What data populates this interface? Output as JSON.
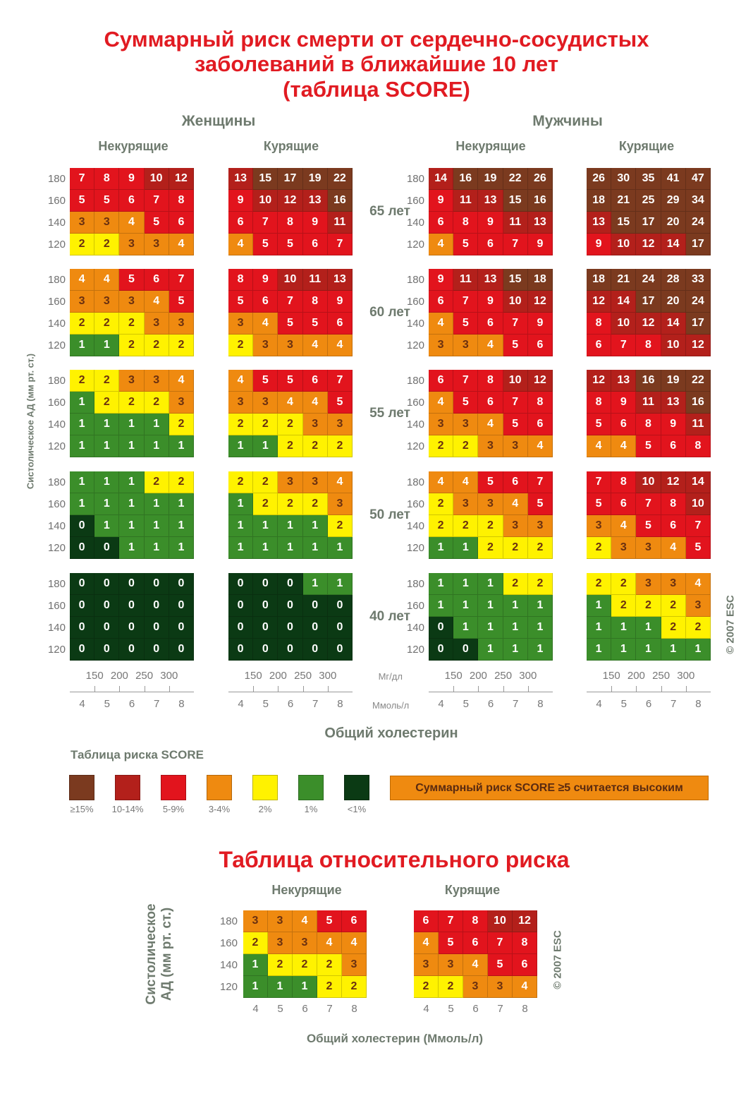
{
  "title": {
    "line1": "Суммарный риск смерти от сердечно-сосудистых",
    "line2": "заболеваний в ближайшие 10 лет",
    "line3": "(таблица SCORE)"
  },
  "colors": {
    "ge15": "#7b3a1f",
    "10_14": "#b3201b",
    "5_9": "#e2141d",
    "3_4": "#ef8a10",
    "2": "#fff200",
    "1": "#3b8e2a",
    "lt1": "#0b3a14",
    "title_red": "#e11b22",
    "label_grey": "#6e7a6e"
  },
  "chart_data": [
    {
      "type": "heatmap",
      "title": "Суммарный риск смерти от сердечно-сосудистых заболеваний в ближайшие 10 лет (таблица SCORE)",
      "ylabel": "Систолическое АД (мм рт. ст.)",
      "xlabel": "Общий холестерин",
      "x_ticks_mmol": [
        "4",
        "5",
        "6",
        "7",
        "8"
      ],
      "x_ticks_mg": [
        "150",
        "200",
        "250",
        "300"
      ],
      "x_unit_mg": "Мг/дл",
      "x_unit_mmol": "Ммоль/л",
      "y_ticks": [
        "180",
        "160",
        "140",
        "120"
      ],
      "ages": [
        "65 лет",
        "60 лет",
        "55 лет",
        "50 лет",
        "40 лет"
      ],
      "groups": [
        {
          "sex": "Женщины",
          "smoking": "Некурящие",
          "values": [
            [
              [
                7,
                8,
                9,
                10,
                12
              ],
              [
                5,
                5,
                6,
                7,
                8
              ],
              [
                3,
                3,
                4,
                5,
                6
              ],
              [
                2,
                2,
                3,
                3,
                4
              ]
            ],
            [
              [
                4,
                4,
                5,
                6,
                7
              ],
              [
                3,
                3,
                3,
                4,
                5
              ],
              [
                2,
                2,
                2,
                3,
                3
              ],
              [
                1,
                1,
                2,
                2,
                2
              ]
            ],
            [
              [
                2,
                2,
                3,
                3,
                4
              ],
              [
                1,
                2,
                2,
                2,
                3
              ],
              [
                1,
                1,
                1,
                1,
                2
              ],
              [
                1,
                1,
                1,
                1,
                1
              ]
            ],
            [
              [
                1,
                1,
                1,
                2,
                2
              ],
              [
                1,
                1,
                1,
                1,
                1
              ],
              [
                0,
                1,
                1,
                1,
                1
              ],
              [
                0,
                0,
                1,
                1,
                1
              ]
            ],
            [
              [
                0,
                0,
                0,
                0,
                0
              ],
              [
                0,
                0,
                0,
                0,
                0
              ],
              [
                0,
                0,
                0,
                0,
                0
              ],
              [
                0,
                0,
                0,
                0,
                0
              ]
            ]
          ]
        },
        {
          "sex": "Женщины",
          "smoking": "Курящие",
          "values": [
            [
              [
                13,
                15,
                17,
                19,
                22
              ],
              [
                9,
                10,
                12,
                13,
                16
              ],
              [
                6,
                7,
                8,
                9,
                11
              ],
              [
                4,
                5,
                5,
                6,
                7
              ]
            ],
            [
              [
                8,
                9,
                10,
                11,
                13
              ],
              [
                5,
                6,
                7,
                8,
                9
              ],
              [
                3,
                4,
                5,
                5,
                6
              ],
              [
                2,
                3,
                3,
                4,
                4
              ]
            ],
            [
              [
                4,
                5,
                5,
                6,
                7
              ],
              [
                3,
                3,
                4,
                4,
                5
              ],
              [
                2,
                2,
                2,
                3,
                3
              ],
              [
                1,
                1,
                2,
                2,
                2
              ]
            ],
            [
              [
                2,
                2,
                3,
                3,
                4
              ],
              [
                1,
                2,
                2,
                2,
                3
              ],
              [
                1,
                1,
                1,
                1,
                2
              ],
              [
                1,
                1,
                1,
                1,
                1
              ]
            ],
            [
              [
                0,
                0,
                0,
                1,
                1
              ],
              [
                0,
                0,
                0,
                0,
                0
              ],
              [
                0,
                0,
                0,
                0,
                0
              ],
              [
                0,
                0,
                0,
                0,
                0
              ]
            ]
          ]
        },
        {
          "sex": "Мужчины",
          "smoking": "Некурящие",
          "values": [
            [
              [
                14,
                16,
                19,
                22,
                26
              ],
              [
                9,
                11,
                13,
                15,
                16
              ],
              [
                6,
                8,
                9,
                11,
                13
              ],
              [
                4,
                5,
                6,
                7,
                9
              ]
            ],
            [
              [
                9,
                11,
                13,
                15,
                18
              ],
              [
                6,
                7,
                9,
                10,
                12
              ],
              [
                4,
                5,
                6,
                7,
                9
              ],
              [
                3,
                3,
                4,
                5,
                6
              ]
            ],
            [
              [
                6,
                7,
                8,
                10,
                12
              ],
              [
                4,
                5,
                6,
                7,
                8
              ],
              [
                3,
                3,
                4,
                5,
                6
              ],
              [
                2,
                2,
                3,
                3,
                4
              ]
            ],
            [
              [
                4,
                4,
                5,
                6,
                7
              ],
              [
                2,
                3,
                3,
                4,
                5
              ],
              [
                2,
                2,
                2,
                3,
                3
              ],
              [
                1,
                1,
                2,
                2,
                2
              ]
            ],
            [
              [
                1,
                1,
                1,
                2,
                2
              ],
              [
                1,
                1,
                1,
                1,
                1
              ],
              [
                0,
                1,
                1,
                1,
                1
              ],
              [
                0,
                0,
                1,
                1,
                1
              ]
            ]
          ]
        },
        {
          "sex": "Мужчины",
          "smoking": "Курящие",
          "values": [
            [
              [
                26,
                30,
                35,
                41,
                47
              ],
              [
                18,
                21,
                25,
                29,
                34
              ],
              [
                13,
                15,
                17,
                20,
                24
              ],
              [
                9,
                10,
                12,
                14,
                17
              ]
            ],
            [
              [
                18,
                21,
                24,
                28,
                33
              ],
              [
                12,
                14,
                17,
                20,
                24
              ],
              [
                8,
                10,
                12,
                14,
                17
              ],
              [
                6,
                7,
                8,
                10,
                12
              ]
            ],
            [
              [
                12,
                13,
                16,
                19,
                22
              ],
              [
                8,
                9,
                11,
                13,
                16
              ],
              [
                5,
                6,
                8,
                9,
                11
              ],
              [
                4,
                4,
                5,
                6,
                8
              ]
            ],
            [
              [
                7,
                8,
                10,
                12,
                14
              ],
              [
                5,
                6,
                7,
                8,
                10
              ],
              [
                3,
                4,
                5,
                6,
                7
              ],
              [
                2,
                3,
                3,
                4,
                5
              ]
            ],
            [
              [
                2,
                2,
                3,
                3,
                4
              ],
              [
                1,
                2,
                2,
                2,
                3
              ],
              [
                1,
                1,
                1,
                2,
                2
              ],
              [
                1,
                1,
                1,
                1,
                1
              ]
            ]
          ]
        }
      ],
      "legend": {
        "title": "Таблица риска SCORE",
        "items": [
          {
            "label": "≥15%",
            "color": "#7b3a1f"
          },
          {
            "label": "10-14%",
            "color": "#b3201b"
          },
          {
            "label": "5-9%",
            "color": "#e2141d"
          },
          {
            "label": "3-4%",
            "color": "#ef8a10"
          },
          {
            "label": "2%",
            "color": "#fff200"
          },
          {
            "label": "1%",
            "color": "#3b8e2a"
          },
          {
            "label": "<1%",
            "color": "#0b3a14"
          }
        ],
        "note": "Суммарный риск SCORE ≥5 считается высоким"
      },
      "copyright": "© 2007 ESC"
    },
    {
      "type": "heatmap",
      "title": "Таблица относительного риска",
      "ylabel": "Систолическое АД (мм рт. ст.)",
      "xlabel": "Общий холестерин (Ммоль/л)",
      "x_ticks": [
        "4",
        "5",
        "6",
        "7",
        "8"
      ],
      "y_ticks": [
        "180",
        "160",
        "140",
        "120"
      ],
      "groups": [
        {
          "smoking": "Некурящие",
          "values": [
            [
              3,
              3,
              4,
              5,
              6
            ],
            [
              2,
              3,
              3,
              4,
              4
            ],
            [
              1,
              2,
              2,
              2,
              3
            ],
            [
              1,
              1,
              1,
              2,
              2
            ]
          ]
        },
        {
          "smoking": "Курящие",
          "values": [
            [
              6,
              7,
              8,
              10,
              12
            ],
            [
              4,
              5,
              6,
              7,
              8
            ],
            [
              3,
              3,
              4,
              5,
              6
            ],
            [
              2,
              2,
              3,
              3,
              4
            ]
          ]
        }
      ],
      "copyright": "© 2007 ESC"
    }
  ]
}
